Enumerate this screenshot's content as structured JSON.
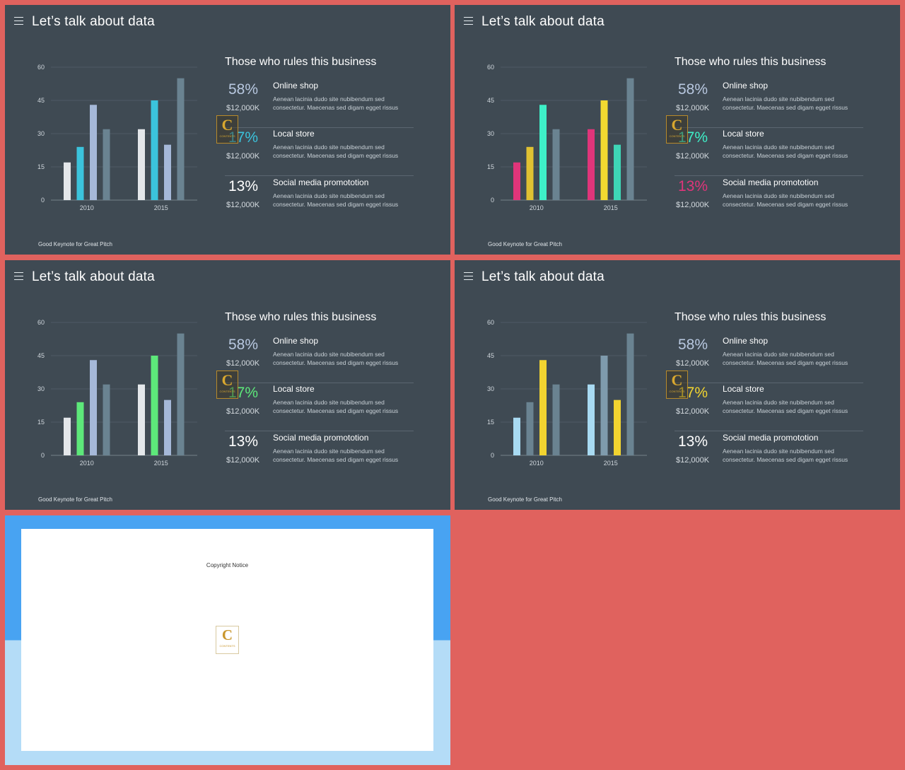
{
  "colors": {
    "page_bg": "#e0625e",
    "slide_bg": "#3f4a53",
    "gridline": "#56616a"
  },
  "slide": {
    "title": "Let’s talk about data",
    "section_title": "Those who rules this business",
    "footer": "Good Keynote for Great Pitch",
    "stats": [
      {
        "pct": "58%",
        "amount": "$12,000K",
        "name": "Online shop",
        "desc": "Aenean lacinia  dudo  site nubibendum sed consectetur. Maecenas sed digam egget rissus"
      },
      {
        "pct": "17%",
        "amount": "$12,000K",
        "name": "Local store",
        "desc": "Aenean lacinia  dudo  site nubibendum sed consectetur. Maecenas sed digam egget rissus"
      },
      {
        "pct": "13%",
        "amount": "$12,000K",
        "name": "Social media promototion",
        "desc": "Aenean lacinia  dudo  site nubibendum sed consectetur. Maecenas sed digam egget rissus"
      }
    ],
    "logo": {
      "letter": "C",
      "text": "CONTENTS"
    }
  },
  "chart_data": [
    {
      "type": "bar",
      "categories": [
        "2010",
        "2015"
      ],
      "yticks": [
        0,
        15,
        30,
        45,
        60
      ],
      "ylim": [
        0,
        60
      ],
      "series": [
        {
          "values": [
            17,
            32
          ]
        },
        {
          "values": [
            24,
            45
          ]
        },
        {
          "values": [
            43,
            25
          ]
        },
        {
          "values": [
            32,
            55
          ]
        }
      ]
    },
    {
      "type": "bar",
      "categories": [
        "2010",
        "2015"
      ],
      "yticks": [
        0,
        15,
        30,
        45,
        60
      ],
      "ylim": [
        0,
        60
      ],
      "series": [
        {
          "values": [
            17,
            32
          ]
        },
        {
          "values": [
            24,
            45
          ]
        },
        {
          "values": [
            43,
            25
          ]
        },
        {
          "values": [
            32,
            55
          ]
        }
      ]
    },
    {
      "type": "bar",
      "categories": [
        "2010",
        "2015"
      ],
      "yticks": [
        0,
        15,
        30,
        45,
        60
      ],
      "ylim": [
        0,
        60
      ],
      "series": [
        {
          "values": [
            17,
            32
          ]
        },
        {
          "values": [
            24,
            45
          ]
        },
        {
          "values": [
            43,
            25
          ]
        },
        {
          "values": [
            32,
            55
          ]
        }
      ]
    },
    {
      "type": "bar",
      "categories": [
        "2010",
        "2015"
      ],
      "yticks": [
        0,
        15,
        30,
        45,
        60
      ],
      "ylim": [
        0,
        60
      ],
      "series": [
        {
          "values": [
            17,
            32
          ]
        },
        {
          "values": [
            24,
            45
          ]
        },
        {
          "values": [
            43,
            25
          ]
        },
        {
          "values": [
            32,
            55
          ]
        }
      ]
    }
  ],
  "variants": [
    {
      "bar_colors": [
        [
          "#e4e7ea",
          "#3bc3dc",
          "#a5b8d8",
          "#6a8391"
        ],
        [
          "#e4e7ea",
          "#3bc3dc",
          "#a5b8d8",
          "#6a8391"
        ]
      ],
      "pct_colors": [
        "#b8c8e0",
        "#3bc3dc",
        "#ffffff"
      ]
    },
    {
      "bar_colors": [
        [
          "#e0357a",
          "#e0c132",
          "#3ef0c8",
          "#6a8391"
        ],
        [
          "#e0357a",
          "#f2d930",
          "#3ed6b6",
          "#6a8391"
        ]
      ],
      "pct_colors": [
        "#b8c8e0",
        "#3ef0c8",
        "#e0357a"
      ]
    },
    {
      "bar_colors": [
        [
          "#e4e7ea",
          "#5de87a",
          "#a5b8d8",
          "#6a8391"
        ],
        [
          "#e4e7ea",
          "#5de87a",
          "#a5b8d8",
          "#6a8391"
        ]
      ],
      "pct_colors": [
        "#b8c8e0",
        "#5de87a",
        "#ffffff"
      ]
    },
    {
      "bar_colors": [
        [
          "#a8daf2",
          "#6a8391",
          "#f2d430",
          "#6a8391"
        ],
        [
          "#a8daf2",
          "#7f9bad",
          "#f2d430",
          "#6a8391"
        ]
      ],
      "pct_colors": [
        "#b8c8e0",
        "#f2d430",
        "#ffffff"
      ]
    }
  ],
  "copyright_slide": {
    "title": "Copyright Notice",
    "logo_letter": "C",
    "logo_text": "CONTENTS"
  }
}
